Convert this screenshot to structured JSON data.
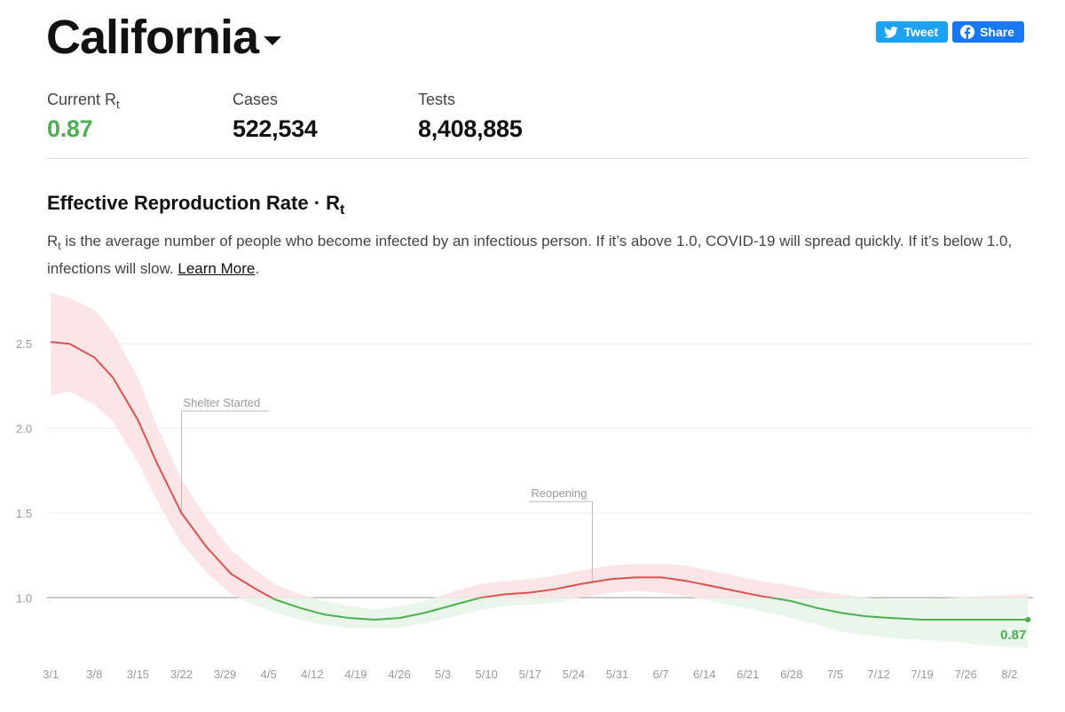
{
  "header": {
    "state": "California",
    "tweet_label": "Tweet",
    "share_label": "Share"
  },
  "stats": {
    "rt_label": "Current R",
    "rt_sub": "t",
    "rt_value": "0.87",
    "cases_label": "Cases",
    "cases_value": "522,534",
    "tests_label": "Tests",
    "tests_value": "8,408,885"
  },
  "section": {
    "title": "Effective Reproduction Rate · R",
    "title_sub": "t",
    "desc_lead": "R",
    "desc_sub": "t",
    "desc_body": " is the average number of people who become infected by an infectious person. If it’s above 1.0, COVID-19 will spread quickly. If it’s below 1.0, infections will slow. ",
    "learn_more": "Learn More",
    "desc_end": "."
  },
  "colors": {
    "above": "#d9534f",
    "below": "#4caf50",
    "band_above": "#fbe5e7",
    "band_below": "#eaf6e9",
    "grid": "#ececec",
    "reference": "#aaaaaa"
  },
  "chart_data": {
    "type": "line",
    "x_tick_labels": [
      "3/1",
      "3/8",
      "3/15",
      "3/22",
      "3/29",
      "4/5",
      "4/12",
      "4/19",
      "4/26",
      "5/3",
      "5/10",
      "5/17",
      "5/24",
      "5/31",
      "6/7",
      "6/14",
      "6/21",
      "6/28",
      "7/5",
      "7/12",
      "7/19",
      "7/26",
      "8/2"
    ],
    "y_ticks": [
      "2.5",
      "2.0",
      "1.5",
      "1.0"
    ],
    "ylim": [
      0.65,
      2.8
    ],
    "reference_line": 1.0,
    "x_range_days": [
      -0.6,
      157.8
    ],
    "series": [
      {
        "values": [
          [
            0,
            2.51
          ],
          [
            3,
            2.5
          ],
          [
            7,
            2.42
          ],
          [
            10,
            2.3
          ],
          [
            14,
            2.05
          ],
          [
            17,
            1.8
          ],
          [
            21,
            1.5
          ],
          [
            25,
            1.3
          ],
          [
            29,
            1.14
          ],
          [
            33,
            1.05
          ],
          [
            36,
            0.99
          ],
          [
            40,
            0.94
          ],
          [
            44,
            0.9
          ],
          [
            48,
            0.88
          ],
          [
            52,
            0.87
          ],
          [
            56,
            0.88
          ],
          [
            60,
            0.91
          ],
          [
            65,
            0.96
          ],
          [
            69,
            1.0
          ],
          [
            73,
            1.02
          ],
          [
            77,
            1.03
          ],
          [
            81,
            1.05
          ],
          [
            85,
            1.08
          ],
          [
            90,
            1.11
          ],
          [
            94,
            1.12
          ],
          [
            98,
            1.12
          ],
          [
            102,
            1.1
          ],
          [
            106,
            1.07
          ],
          [
            110,
            1.04
          ],
          [
            114,
            1.01
          ],
          [
            119,
            0.98
          ],
          [
            123,
            0.94
          ],
          [
            127,
            0.91
          ],
          [
            131,
            0.89
          ],
          [
            135,
            0.88
          ],
          [
            140,
            0.87
          ],
          [
            145,
            0.87
          ],
          [
            150,
            0.87
          ],
          [
            157,
            0.87
          ]
        ],
        "band": [
          [
            0,
            2.19,
            2.8
          ],
          [
            3,
            2.22,
            2.77
          ],
          [
            7,
            2.14,
            2.7
          ],
          [
            10,
            2.04,
            2.57
          ],
          [
            14,
            1.8,
            2.3
          ],
          [
            17,
            1.58,
            2.02
          ],
          [
            21,
            1.32,
            1.7
          ],
          [
            25,
            1.15,
            1.47
          ],
          [
            29,
            1.02,
            1.28
          ],
          [
            33,
            0.95,
            1.16
          ],
          [
            36,
            0.91,
            1.08
          ],
          [
            40,
            0.87,
            1.02
          ],
          [
            44,
            0.84,
            0.98
          ],
          [
            48,
            0.82,
            0.95
          ],
          [
            52,
            0.82,
            0.93
          ],
          [
            56,
            0.82,
            0.95
          ],
          [
            60,
            0.85,
            0.98
          ],
          [
            65,
            0.89,
            1.04
          ],
          [
            69,
            0.93,
            1.08
          ],
          [
            73,
            0.95,
            1.1
          ],
          [
            77,
            0.96,
            1.11
          ],
          [
            81,
            0.97,
            1.13
          ],
          [
            85,
            1.0,
            1.16
          ],
          [
            90,
            1.03,
            1.19
          ],
          [
            94,
            1.04,
            1.2
          ],
          [
            98,
            1.03,
            1.2
          ],
          [
            102,
            1.01,
            1.19
          ],
          [
            106,
            0.98,
            1.16
          ],
          [
            110,
            0.95,
            1.13
          ],
          [
            114,
            0.92,
            1.1
          ],
          [
            119,
            0.88,
            1.07
          ],
          [
            123,
            0.84,
            1.04
          ],
          [
            127,
            0.8,
            1.02
          ],
          [
            131,
            0.78,
            1.0
          ],
          [
            135,
            0.76,
            0.99
          ],
          [
            140,
            0.75,
            0.99
          ],
          [
            145,
            0.74,
            1.0
          ],
          [
            150,
            0.72,
            1.01
          ],
          [
            157,
            0.7,
            1.02
          ]
        ]
      }
    ],
    "annotations": [
      {
        "label": "Shelter Started",
        "day": 21
      },
      {
        "label": "Reopening",
        "day": 87
      }
    ],
    "end_label": "0.87"
  }
}
